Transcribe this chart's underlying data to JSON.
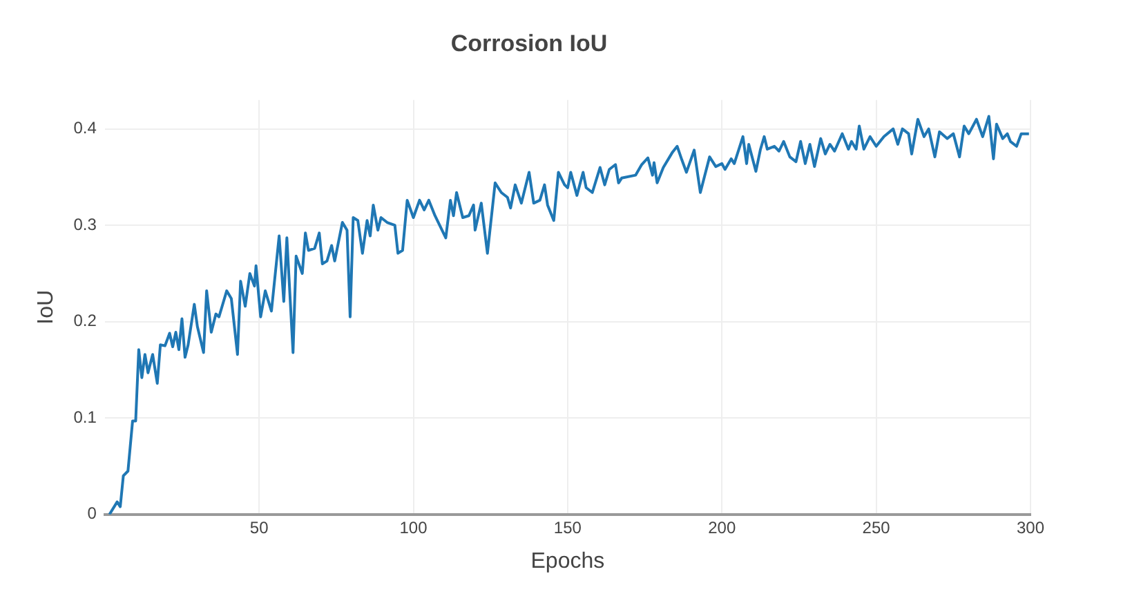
{
  "chart_data": {
    "type": "line",
    "title": "Corrosion IoU",
    "xlabel": "Epochs",
    "ylabel": "IoU",
    "xlim": [
      0,
      300
    ],
    "xticks": [
      50,
      100,
      150,
      200,
      250,
      300
    ],
    "ylim": [
      0,
      0.43
    ],
    "yticks": [
      0,
      0.1,
      0.2,
      0.3,
      0.4
    ],
    "grid": true,
    "legend": false,
    "marker": "none",
    "line_style": "solid",
    "series": [
      {
        "color": "#1f77b4",
        "x": [
          1.5,
          4,
          5,
          6,
          7.5,
          9,
          10,
          11,
          12,
          13,
          14,
          15.5,
          17,
          18,
          19.5,
          21,
          22,
          23,
          24,
          25,
          26,
          27,
          29,
          30,
          32,
          33,
          34.5,
          36,
          37,
          39.5,
          41,
          43,
          44,
          45.5,
          47,
          48.5,
          49,
          50.5,
          52,
          54,
          56.5,
          58,
          59,
          61,
          62,
          64,
          65,
          66,
          68,
          69.5,
          70.5,
          72,
          73.5,
          74.5,
          77,
          78.5,
          79.5,
          80.5,
          82,
          83.5,
          85,
          86,
          87,
          88.5,
          89.5,
          91.5,
          94,
          95,
          96.5,
          98,
          100,
          102,
          103.5,
          105,
          107,
          110.5,
          112,
          113,
          114,
          116,
          118,
          119.5,
          120,
          122,
          124,
          126.5,
          128.5,
          130.5,
          131.5,
          133,
          135,
          137.5,
          139,
          141,
          142.5,
          143.5,
          145.5,
          147,
          149,
          150,
          151,
          153,
          155,
          156,
          158,
          160.5,
          162,
          163.5,
          165.5,
          166.5,
          167.5,
          172,
          174,
          176,
          177.5,
          178,
          179,
          181,
          184,
          185.5,
          187,
          188.5,
          191,
          193,
          196,
          198,
          200,
          201,
          203,
          204,
          206.8,
          208,
          208.7,
          211,
          212.5,
          213.7,
          214.7,
          217,
          218.5,
          220,
          222,
          224,
          225.5,
          227,
          228.5,
          230,
          232,
          233.5,
          235,
          236.5,
          239,
          241,
          242,
          243.5,
          244.5,
          246,
          248,
          250,
          252.5,
          255.5,
          257,
          258.5,
          260.5,
          261.5,
          263.5,
          265.5,
          267,
          269,
          270.5,
          273,
          275,
          277,
          278.5,
          280,
          282.5,
          284.5,
          286.5,
          288,
          289,
          291,
          292.5,
          293.5,
          295.5,
          297,
          299.5
        ],
        "values": [
          0,
          0.013,
          0.008,
          0.04,
          0.045,
          0.097,
          0.097,
          0.171,
          0.142,
          0.166,
          0.147,
          0.166,
          0.136,
          0.176,
          0.175,
          0.188,
          0.174,
          0.189,
          0.171,
          0.203,
          0.163,
          0.176,
          0.218,
          0.195,
          0.168,
          0.232,
          0.189,
          0.208,
          0.205,
          0.232,
          0.224,
          0.166,
          0.242,
          0.216,
          0.25,
          0.237,
          0.258,
          0.205,
          0.232,
          0.211,
          0.289,
          0.221,
          0.287,
          0.168,
          0.268,
          0.25,
          0.292,
          0.274,
          0.276,
          0.292,
          0.26,
          0.263,
          0.279,
          0.263,
          0.303,
          0.295,
          0.205,
          0.308,
          0.305,
          0.271,
          0.305,
          0.289,
          0.321,
          0.295,
          0.308,
          0.303,
          0.3,
          0.271,
          0.274,
          0.326,
          0.308,
          0.326,
          0.316,
          0.326,
          0.31,
          0.287,
          0.326,
          0.31,
          0.334,
          0.308,
          0.31,
          0.321,
          0.295,
          0.323,
          0.271,
          0.344,
          0.334,
          0.329,
          0.318,
          0.342,
          0.323,
          0.355,
          0.323,
          0.326,
          0.342,
          0.321,
          0.305,
          0.355,
          0.342,
          0.339,
          0.355,
          0.331,
          0.355,
          0.339,
          0.334,
          0.36,
          0.342,
          0.358,
          0.363,
          0.344,
          0.349,
          0.352,
          0.363,
          0.37,
          0.352,
          0.365,
          0.344,
          0.36,
          0.376,
          0.382,
          0.368,
          0.355,
          0.378,
          0.334,
          0.371,
          0.361,
          0.364,
          0.358,
          0.369,
          0.364,
          0.392,
          0.364,
          0.384,
          0.356,
          0.379,
          0.392,
          0.379,
          0.382,
          0.377,
          0.387,
          0.371,
          0.366,
          0.387,
          0.364,
          0.384,
          0.361,
          0.39,
          0.374,
          0.384,
          0.377,
          0.395,
          0.379,
          0.387,
          0.379,
          0.403,
          0.379,
          0.392,
          0.382,
          0.392,
          0.4,
          0.384,
          0.4,
          0.395,
          0.374,
          0.41,
          0.392,
          0.4,
          0.371,
          0.397,
          0.39,
          0.395,
          0.371,
          0.403,
          0.395,
          0.41,
          0.392,
          0.413,
          0.369,
          0.405,
          0.39,
          0.395,
          0.387,
          0.382,
          0.395,
          0.395
        ]
      }
    ]
  }
}
